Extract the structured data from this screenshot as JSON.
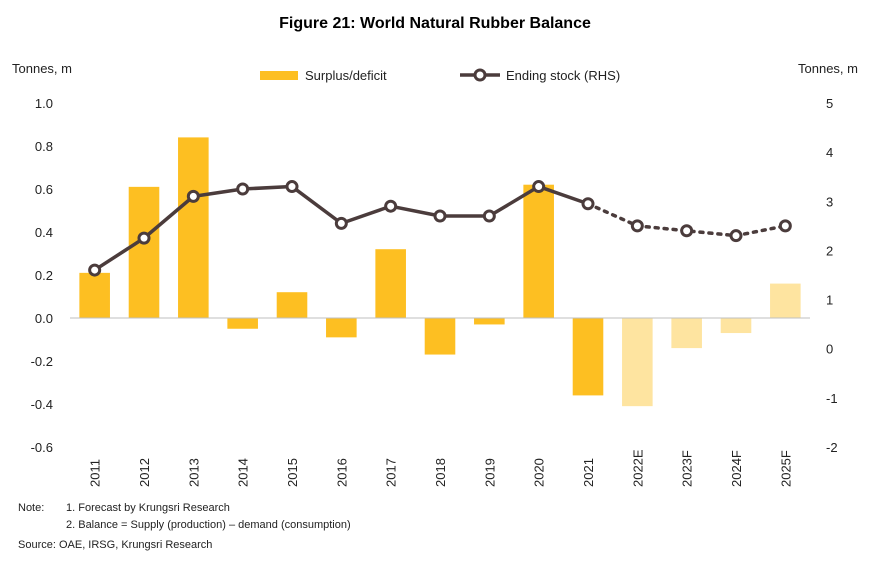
{
  "chart_data": {
    "type": "bar",
    "title": "Figure 21: World Natural Rubber Balance",
    "ylabel_left": "Tonnes, m",
    "ylabel_right": "Tonnes, m",
    "ylim_left": [
      -0.6,
      1.0
    ],
    "ylim_right": [
      -2,
      5
    ],
    "yticks_left": [
      "1.0",
      "0.8",
      "0.6",
      "0.4",
      "0.2",
      "0.0",
      "-0.2",
      "-0.4",
      "-0.6"
    ],
    "yticks_right": [
      "5",
      "4",
      "3",
      "2",
      "1",
      "0",
      "-1",
      "-2"
    ],
    "categories": [
      "2011",
      "2012",
      "2013",
      "2014",
      "2015",
      "2016",
      "2017",
      "2018",
      "2019",
      "2020",
      "2021",
      "2022E",
      "2023F",
      "2024F",
      "2025F"
    ],
    "forecast_from_index": 11,
    "series": [
      {
        "name": "Surplus/deficit",
        "type": "bar",
        "axis": "left",
        "color": "#FDBF22",
        "forecast_color": "#FEE4A0",
        "values": [
          0.21,
          0.61,
          0.84,
          -0.05,
          0.12,
          -0.09,
          0.32,
          -0.17,
          -0.03,
          0.62,
          -0.36,
          -0.41,
          -0.14,
          -0.07,
          0.16
        ]
      },
      {
        "name": "Ending stock (RHS)",
        "type": "line",
        "axis": "right",
        "color": "#4B3C3C",
        "values": [
          1.6,
          2.25,
          3.1,
          3.25,
          3.3,
          2.55,
          2.9,
          2.7,
          2.7,
          3.3,
          2.95,
          2.5,
          2.4,
          2.3,
          2.5
        ]
      }
    ],
    "grid": false,
    "legend": "top-center"
  },
  "notes": {
    "label": "Note:",
    "line1": "1. Forecast by Krungsri Research",
    "line2": "2. Balance = Supply (production) – demand (consumption)",
    "source": "Source: OAE, IRSG, Krungsri Research"
  }
}
